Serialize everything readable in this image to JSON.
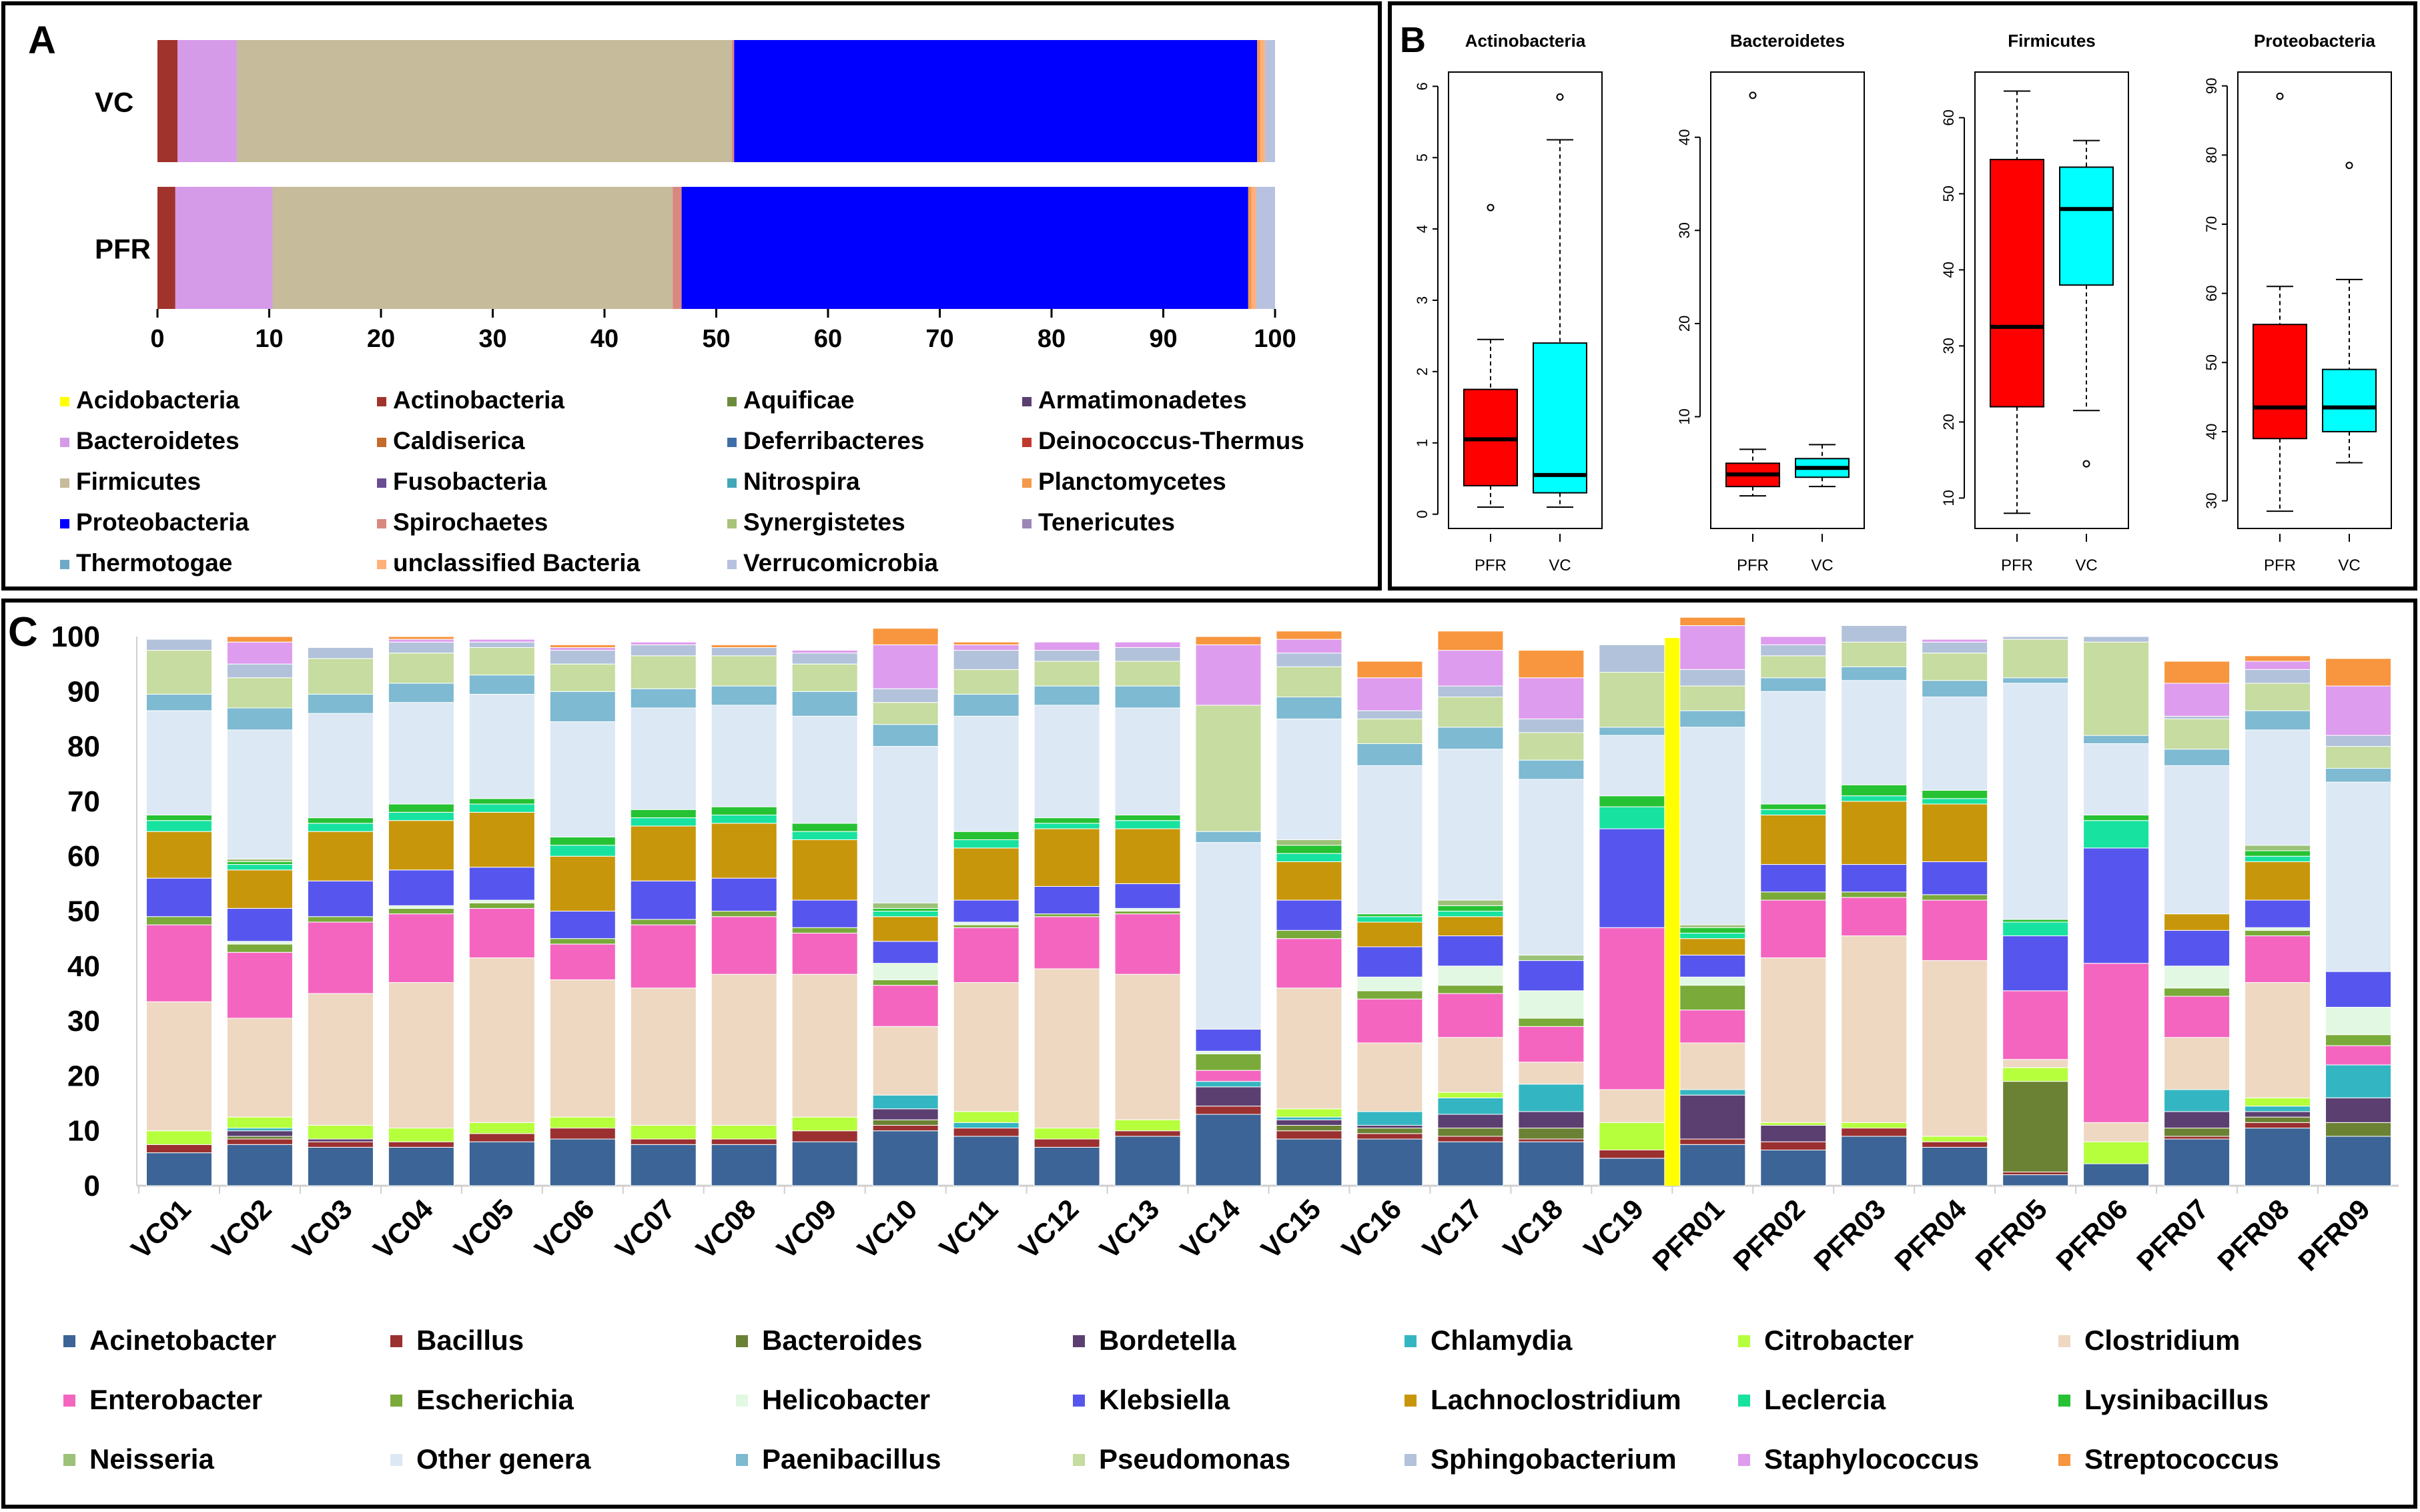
{
  "colors": {
    "phyla": {
      "Acidobacteria": "#FFFF00",
      "Actinobacteria": "#A0332B",
      "Aquificae": "#6E8B3D",
      "Armatimonadetes": "#5B3F70",
      "Bacteroidetes": "#D59BE8",
      "Caldiserica": "#C46A2A",
      "Deferribacteres": "#3E6FA8",
      "Deinococcus-Thermus": "#C0392B",
      "Firmicutes": "#C6BB9A",
      "Fusobacteria": "#6A4C93",
      "Nitrospira": "#3FA7B8",
      "Planctomycetes": "#F39A4A",
      "Proteobacteria": "#0000FF",
      "Spirochaetes": "#D98880",
      "Synergistetes": "#A9C37A",
      "Tenericutes": "#9C86B8",
      "Thermotogae": "#6FA9C7",
      "unclassified Bacteria": "#FFB07A",
      "Verrucomicrobia": "#B8C2E0"
    },
    "genera": {
      "Acinetobacter": "#3C6496",
      "Bacillus": "#9B3030",
      "Bacteroides": "#6B8234",
      "Bordetella": "#5C3F71",
      "Chlamydia": "#34B6C2",
      "Citrobacter": "#B6FF3C",
      "Clostridium": "#EED8C2",
      "Enterobacter": "#F465C0",
      "Escherichia": "#7AAA3A",
      "Helicobacter": "#E2F8E2",
      "Klebsiella": "#5656EE",
      "Lachnoclostridium": "#C8960A",
      "Leclercia": "#18E2A0",
      "Lysinibacillus": "#26C233",
      "Neisseria": "#9CC178",
      "Other genera": "#DCE8F4",
      "Paenibacillus": "#7EBAD2",
      "Pseudomonas": "#C6DCA0",
      "Sphingobacterium": "#B2C2DA",
      "Staphylococcus": "#DE9CEE",
      "Streptococcus": "#F7963E"
    },
    "box_pfr": "#FF0000",
    "box_vc": "#00FFFF",
    "separator": "#FFFF00"
  },
  "panel_a": {
    "letter": "A",
    "chart_data": {
      "type": "bar",
      "orientation": "horizontal",
      "stacked": true,
      "categories": [
        "VC",
        "PFR"
      ],
      "xlim": [
        0,
        100
      ],
      "xticks": [
        "0",
        "10",
        "20",
        "30",
        "40",
        "50",
        "60",
        "70",
        "80",
        "90",
        "100"
      ],
      "series": [
        {
          "name": "Actinobacteria",
          "values": [
            1.8,
            1.6
          ]
        },
        {
          "name": "Bacteroidetes",
          "values": [
            5.3,
            8.7
          ]
        },
        {
          "name": "Firmicutes",
          "values": [
            44.3,
            35.8
          ]
        },
        {
          "name": "Spirochaetes",
          "values": [
            0.2,
            0.8
          ]
        },
        {
          "name": "Proteobacteria",
          "values": [
            46.8,
            50.7
          ]
        },
        {
          "name": "Planctomycetes",
          "values": [
            0.3,
            0.3
          ]
        },
        {
          "name": "unclassified Bacteria",
          "values": [
            0.4,
            0.4
          ]
        },
        {
          "name": "Verrucomicrobia",
          "values": [
            0.9,
            1.7
          ]
        }
      ]
    },
    "legend": [
      "Acidobacteria",
      "Actinobacteria",
      "Aquificae",
      "Armatimonadetes",
      "Bacteroidetes",
      "Caldiserica",
      "Deferribacteres",
      "Deinococcus-Thermus",
      "Firmicutes",
      "Fusobacteria",
      "Nitrospira",
      "Planctomycetes",
      "Proteobacteria",
      "Spirochaetes",
      "Synergistetes",
      "Tenericutes",
      "Thermotogae",
      "unclassified Bacteria",
      "Verrucomicrobia"
    ]
  },
  "panel_b": {
    "letter": "B",
    "chart_data": [
      {
        "type": "box",
        "title": "Actinobacteria",
        "ylim": [
          -0.2,
          6.2
        ],
        "yticks": [
          "0",
          "1",
          "2",
          "3",
          "4",
          "5",
          "6"
        ],
        "tickvals": [
          0,
          1,
          2,
          3,
          4,
          5,
          6
        ],
        "groups": [
          {
            "name": "PFR",
            "min": 0.1,
            "q1": 0.4,
            "median": 1.05,
            "q3": 1.75,
            "max": 2.45,
            "outliers": [
              4.3
            ]
          },
          {
            "name": "VC",
            "min": 0.1,
            "q1": 0.3,
            "median": 0.55,
            "q3": 2.4,
            "max": 5.25,
            "outliers": [
              5.85
            ]
          }
        ]
      },
      {
        "type": "box",
        "title": "Bacteroidetes",
        "ylim": [
          -2,
          47
        ],
        "yticks": [
          "10",
          "20",
          "30",
          "40"
        ],
        "tickvals": [
          10,
          20,
          30,
          40
        ],
        "groups": [
          {
            "name": "PFR",
            "min": 1.5,
            "q1": 2.5,
            "median": 3.8,
            "q3": 5,
            "max": 6.5,
            "outliers": [
              44.5
            ]
          },
          {
            "name": "VC",
            "min": 2.5,
            "q1": 3.5,
            "median": 4.5,
            "q3": 5.5,
            "max": 7,
            "outliers": []
          }
        ]
      },
      {
        "type": "box",
        "title": "Firmicutes",
        "ylim": [
          6,
          66
        ],
        "yticks": [
          "10",
          "20",
          "30",
          "40",
          "50",
          "60"
        ],
        "tickvals": [
          10,
          20,
          30,
          40,
          50,
          60
        ],
        "groups": [
          {
            "name": "PFR",
            "min": 8,
            "q1": 22,
            "median": 32.5,
            "q3": 54.5,
            "max": 63.5,
            "outliers": []
          },
          {
            "name": "VC",
            "min": 21.5,
            "q1": 38,
            "median": 48,
            "q3": 53.5,
            "max": 57,
            "outliers": [
              14.5
            ]
          }
        ]
      },
      {
        "type": "box",
        "title": "Proteobacteria",
        "ylim": [
          26,
          92
        ],
        "yticks": [
          "30",
          "40",
          "50",
          "60",
          "70",
          "80",
          "90"
        ],
        "tickvals": [
          30,
          40,
          50,
          60,
          70,
          80,
          90
        ],
        "groups": [
          {
            "name": "PFR",
            "min": 28.5,
            "q1": 39,
            "median": 43.5,
            "q3": 55.5,
            "max": 61,
            "outliers": [
              88.5
            ]
          },
          {
            "name": "VC",
            "min": 35.5,
            "q1": 40,
            "median": 43.5,
            "q3": 49,
            "max": 62,
            "outliers": [
              78.5
            ]
          }
        ]
      }
    ]
  },
  "panel_c": {
    "letter": "C",
    "chart_data": {
      "type": "bar",
      "stacked": true,
      "ylim": [
        0,
        100
      ],
      "yticks": [
        "0",
        "10",
        "20",
        "30",
        "40",
        "50",
        "60",
        "70",
        "80",
        "90",
        "100"
      ],
      "categories": [
        "VC01",
        "VC02",
        "VC03",
        "VC04",
        "VC05",
        "VC06",
        "VC07",
        "VC08",
        "VC09",
        "VC10",
        "VC11",
        "VC12",
        "VC13",
        "VC14",
        "VC15",
        "VC16",
        "VC17",
        "VC18",
        "VC19",
        "PFR01",
        "PFR02",
        "PFR03",
        "PFR04",
        "PFR05",
        "PFR06",
        "PFR07",
        "PFR08",
        "PFR09"
      ],
      "series": [
        {
          "name": "Acinetobacter",
          "values": [
            6,
            7.5,
            7,
            7,
            8,
            8.5,
            7.5,
            7.5,
            8,
            10,
            9,
            7,
            9,
            13,
            8.5,
            8.5,
            8,
            8,
            5,
            7.5,
            6.5,
            9,
            7,
            2,
            4,
            8.5,
            10.5,
            9
          ]
        },
        {
          "name": "Bacillus",
          "values": [
            1.5,
            1,
            1,
            1,
            1.5,
            2,
            1,
            1,
            2,
            1,
            1.5,
            1.5,
            1,
            1.5,
            1.5,
            1,
            1,
            0.5,
            1.5,
            1,
            1.5,
            1.5,
            1,
            0.5,
            0,
            0.5,
            1,
            0
          ]
        },
        {
          "name": "Bacteroides",
          "values": [
            0,
            0.5,
            0,
            0,
            0,
            0,
            0,
            0,
            0,
            1,
            0,
            0,
            0,
            0,
            1,
            1,
            1.5,
            2,
            0,
            0,
            0,
            0,
            0,
            16.5,
            0,
            1.5,
            1,
            2.5
          ]
        },
        {
          "name": "Bordetella",
          "values": [
            0,
            1,
            0.5,
            0,
            0,
            0,
            0,
            0,
            0,
            2,
            0,
            0,
            0,
            3.5,
            1,
            0.5,
            2.5,
            3,
            0,
            8,
            3,
            0,
            0,
            0,
            0,
            3,
            1,
            4.5
          ]
        },
        {
          "name": "Chlamydia",
          "values": [
            0,
            0.5,
            0,
            0,
            0,
            0,
            0,
            0,
            0,
            2.5,
            1,
            0,
            0,
            1,
            0.5,
            2.5,
            3,
            5,
            0,
            1,
            0,
            0,
            0,
            0,
            0,
            4,
            1,
            6
          ]
        },
        {
          "name": "Citrobacter",
          "values": [
            2.5,
            2,
            2.5,
            2.5,
            2,
            2,
            2.5,
            2.5,
            2.5,
            0,
            2,
            2,
            2,
            0,
            1.5,
            0,
            1,
            0,
            5,
            0,
            0.5,
            1,
            1,
            2.5,
            4,
            0,
            1.5,
            0
          ]
        },
        {
          "name": "Clostridium",
          "values": [
            23.5,
            18,
            24,
            26.5,
            30,
            25,
            25,
            27.5,
            26,
            12.5,
            23.5,
            29,
            26.5,
            0,
            22,
            12.5,
            10,
            4,
            6,
            8.5,
            30,
            34,
            32,
            1.5,
            3.5,
            9.5,
            21,
            0
          ]
        },
        {
          "name": "Enterobacter",
          "values": [
            14,
            12,
            13,
            12.5,
            9,
            6.5,
            11.5,
            10.5,
            7.5,
            7.5,
            10,
            9.5,
            11,
            2,
            9,
            8,
            8,
            6.5,
            29.5,
            6,
            10.5,
            7,
            11,
            12.5,
            29,
            7.5,
            8.5,
            3.5
          ]
        },
        {
          "name": "Escherichia",
          "values": [
            1.5,
            1.5,
            1,
            1,
            1,
            1,
            1,
            1,
            1,
            1,
            0.5,
            0.5,
            0.5,
            3,
            1.5,
            1.5,
            1.5,
            1.5,
            0,
            4.5,
            1.5,
            1,
            1,
            0,
            0,
            1.5,
            1,
            2
          ]
        },
        {
          "name": "Helicobacter",
          "values": [
            0,
            0.5,
            0,
            0.5,
            0.5,
            0,
            0,
            0,
            0,
            3,
            0.5,
            0,
            0.5,
            0.5,
            0,
            2.5,
            3.5,
            5,
            0,
            1.5,
            0,
            0,
            0,
            0,
            0,
            4,
            0.5,
            5
          ]
        },
        {
          "name": "Klebsiella",
          "values": [
            7,
            6,
            6.5,
            6.5,
            6,
            5,
            7,
            6,
            5,
            4,
            4,
            5,
            4.5,
            4,
            5.5,
            5.5,
            5.5,
            5.5,
            18,
            4,
            5,
            5,
            6,
            10,
            21,
            6.5,
            5,
            6.5
          ]
        },
        {
          "name": "Lachnoclostridium",
          "values": [
            8.5,
            7,
            9,
            9,
            10,
            10,
            10,
            10,
            11,
            4.5,
            9.5,
            10.5,
            10,
            0,
            7,
            4.5,
            3.5,
            0,
            0,
            3,
            9,
            11.5,
            10.5,
            0,
            0,
            3,
            7,
            0
          ]
        },
        {
          "name": "Leclercia",
          "values": [
            2,
            1,
            1.5,
            1.5,
            1.5,
            2,
            1.5,
            1.5,
            1.5,
            1,
            1.5,
            1,
            1.5,
            0,
            1.5,
            1,
            1,
            0,
            4,
            1,
            1,
            1,
            1,
            2.5,
            5,
            0,
            1,
            0
          ]
        },
        {
          "name": "Lysinibacillus",
          "values": [
            1,
            0.5,
            1,
            1.5,
            1,
            1.5,
            1.5,
            1.5,
            1.5,
            0.5,
            1.5,
            1,
            1,
            0,
            1.5,
            0.5,
            1,
            0,
            2,
            1,
            1,
            2,
            1.5,
            0.5,
            1,
            0,
            1,
            0
          ]
        },
        {
          "name": "Neisseria",
          "values": [
            0,
            0.5,
            0,
            0,
            0,
            0,
            0,
            0,
            0,
            1,
            0,
            0,
            0,
            0,
            1,
            0,
            1,
            1,
            0,
            0.5,
            0,
            0,
            0,
            0,
            0,
            0,
            1,
            0
          ]
        },
        {
          "name": "Other genera",
          "values": [
            19,
            23.5,
            19,
            18.5,
            19,
            21,
            18.5,
            18.5,
            19.5,
            28.5,
            21,
            20.5,
            19.5,
            34,
            22,
            27,
            27.5,
            32,
            11,
            36,
            20.5,
            19,
            17,
            43,
            13,
            27,
            21,
            34.5
          ]
        },
        {
          "name": "Paenibacillus",
          "values": [
            3,
            4,
            3.5,
            3.5,
            3.5,
            5.5,
            3.5,
            3.5,
            4.5,
            4,
            4,
            3.5,
            4,
            2,
            4,
            4,
            4,
            3.5,
            1.5,
            3,
            2.5,
            2.5,
            3,
            1,
            1.5,
            3,
            3.5,
            2.5
          ]
        },
        {
          "name": "Pseudomonas",
          "values": [
            8,
            5.5,
            6.5,
            5.5,
            5,
            5,
            6,
            5.5,
            5,
            4,
            4.5,
            4.5,
            4.5,
            23,
            5.5,
            4.5,
            5.5,
            5,
            10,
            4.5,
            4,
            4.5,
            5,
            7,
            17,
            5.5,
            5,
            4
          ]
        },
        {
          "name": "Sphingobacterium",
          "values": [
            2,
            2.5,
            2,
            2,
            1,
            2.5,
            2,
            1.5,
            2,
            2.5,
            3.5,
            2,
            2.5,
            0,
            2.5,
            1.5,
            2,
            2.5,
            5,
            3,
            2,
            3,
            2,
            0.5,
            1,
            0.5,
            2.5,
            2
          ]
        },
        {
          "name": "Staphylococcus",
          "values": [
            0,
            4,
            0,
            0.5,
            0.5,
            0.5,
            0.5,
            0,
            0.5,
            8,
            1,
            1.5,
            1,
            11,
            2.5,
            6,
            6.5,
            7.5,
            0,
            8,
            1.5,
            0,
            0.5,
            0,
            0,
            6,
            1.5,
            9
          ]
        },
        {
          "name": "Streptococcus",
          "values": [
            0,
            1,
            0,
            0.5,
            0,
            0.5,
            0,
            0.5,
            0,
            3,
            0.5,
            0,
            0,
            1.5,
            1.5,
            3,
            3.5,
            5,
            0,
            1.5,
            0,
            0,
            0,
            0,
            0,
            4,
            1,
            5
          ]
        }
      ]
    },
    "legend": [
      "Acinetobacter",
      "Bacillus",
      "Bacteroides",
      "Bordetella",
      "Chlamydia",
      "Citrobacter",
      "Clostridium",
      "Enterobacter",
      "Escherichia",
      "Helicobacter",
      "Klebsiella",
      "Lachnoclostridium",
      "Leclercia",
      "Lysinibacillus",
      "Neisseria",
      "Other genera",
      "Paenibacillus",
      "Pseudomonas",
      "Sphingobacterium",
      "Staphylococcus",
      "Streptococcus"
    ]
  }
}
